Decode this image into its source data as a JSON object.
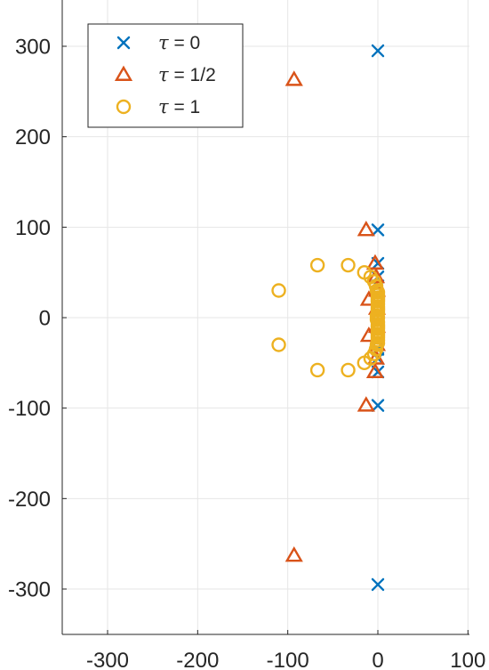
{
  "chart_data": {
    "type": "scatter",
    "xlim": [
      -350,
      100
    ],
    "ylim": [
      -350,
      350
    ],
    "x_ticks": [
      -300,
      -200,
      -100,
      0,
      100
    ],
    "y_ticks": [
      300,
      200,
      100,
      0,
      -100,
      -200,
      -300
    ],
    "x_tick_labels": [
      "-300",
      "-200",
      "-100",
      "0",
      "100"
    ],
    "y_tick_labels": [
      "300",
      "200",
      "100",
      "0",
      "-100",
      "-200",
      "-300"
    ],
    "grid": true,
    "legend_position": "top-left",
    "series": [
      {
        "name": "τ = 0",
        "legend_symbol": "τ",
        "legend_value": "= 0",
        "marker": "x",
        "color": "#0072BD",
        "points": [
          [
            0,
            295
          ],
          [
            0,
            -295
          ],
          [
            0,
            97
          ],
          [
            0,
            -97
          ],
          [
            0,
            60
          ],
          [
            0,
            -60
          ],
          [
            0,
            45
          ],
          [
            0,
            -45
          ],
          [
            0,
            35
          ],
          [
            0,
            -35
          ],
          [
            0,
            25
          ],
          [
            0,
            -25
          ],
          [
            0,
            15
          ],
          [
            0,
            -15
          ],
          [
            0,
            5
          ],
          [
            0,
            -5
          ]
        ]
      },
      {
        "name": "τ = 1/2",
        "legend_symbol": "τ",
        "legend_value": "= 1/2",
        "marker": "triangle",
        "color": "#D95319",
        "points": [
          [
            -93,
            263
          ],
          [
            -93,
            -263
          ],
          [
            -13,
            97
          ],
          [
            -13,
            -97
          ],
          [
            -3,
            60
          ],
          [
            -3,
            -60
          ],
          [
            -10,
            20
          ],
          [
            -10,
            -20
          ],
          [
            -2,
            45
          ],
          [
            -2,
            -45
          ],
          [
            -1,
            30
          ],
          [
            -1,
            -30
          ],
          [
            -1,
            10
          ],
          [
            -1,
            -10
          ]
        ]
      },
      {
        "name": "τ = 1",
        "legend_symbol": "τ",
        "legend_value": "= 1",
        "marker": "circle",
        "color": "#EDB120",
        "points": [
          [
            -110,
            30
          ],
          [
            -110,
            -30
          ],
          [
            -67,
            58
          ],
          [
            -67,
            -58
          ],
          [
            -33,
            58
          ],
          [
            -33,
            -58
          ],
          [
            -15,
            50
          ],
          [
            -15,
            -50
          ],
          [
            -8,
            45
          ],
          [
            -8,
            -45
          ],
          [
            -4,
            40
          ],
          [
            -4,
            -40
          ],
          [
            -2,
            35
          ],
          [
            -2,
            -35
          ],
          [
            -1,
            30
          ],
          [
            -1,
            -30
          ],
          [
            0,
            25
          ],
          [
            0,
            -25
          ],
          [
            0,
            20
          ],
          [
            0,
            -20
          ],
          [
            0,
            15
          ],
          [
            0,
            -15
          ],
          [
            0,
            10
          ],
          [
            0,
            -10
          ],
          [
            0,
            5
          ],
          [
            0,
            -5
          ],
          [
            0,
            0
          ],
          [
            -1,
            2
          ],
          [
            -1,
            -2
          ],
          [
            0,
            8
          ],
          [
            0,
            -8
          ],
          [
            0,
            12
          ],
          [
            0,
            -12
          ],
          [
            0,
            18
          ],
          [
            0,
            -18
          ],
          [
            0,
            22
          ],
          [
            0,
            -22
          ],
          [
            0,
            28
          ],
          [
            0,
            -28
          ]
        ]
      }
    ]
  }
}
